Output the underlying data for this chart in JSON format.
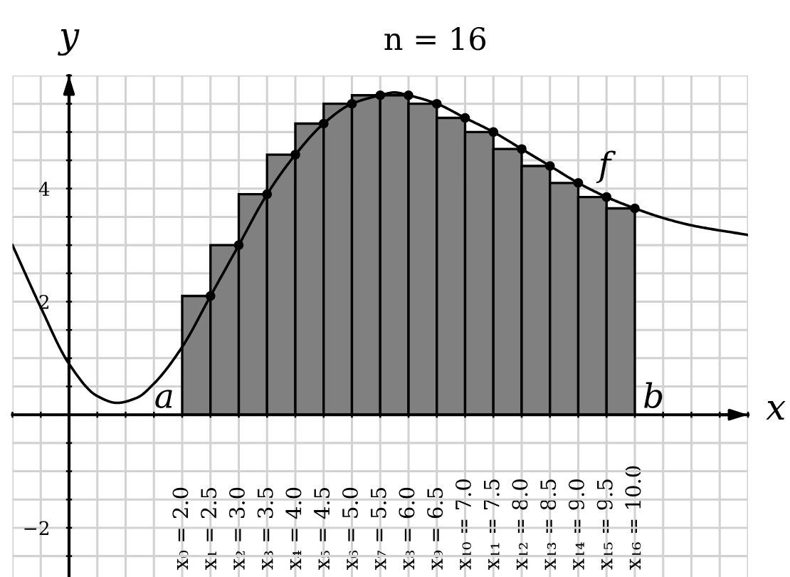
{
  "chart_data": {
    "type": "histogram",
    "title": "n = 16",
    "xlabel": "x",
    "ylabel": "y",
    "bins": [
      2.0,
      2.5,
      3.0,
      3.5,
      4.0,
      4.5,
      5.0,
      5.5,
      6.0,
      6.5,
      7.0,
      7.5,
      8.0,
      8.5,
      9.0,
      9.5,
      10.0
    ],
    "series": [
      {
        "color": "#808080",
        "values": [
          2.1,
          3.0,
          3.9,
          4.6,
          5.15,
          5.5,
          5.65,
          5.65,
          5.5,
          5.25,
          5.0,
          4.7,
          4.4,
          4.1,
          3.85,
          3.65
        ]
      },
      {
        "type": "line",
        "color": "#000000",
        "line_style": "solid",
        "x": [
          -1,
          -0.5,
          0,
          0.5,
          0.85,
          1.2,
          1.5,
          2.0,
          2.5,
          3.0,
          3.5,
          4.0,
          4.5,
          5.0,
          5.5,
          5.75,
          6.0,
          6.5,
          7.0,
          7.5,
          8.0,
          8.5,
          9.0,
          9.5,
          10.0,
          10.5,
          11.0,
          12.0
        ],
        "values": [
          3.0,
          1.9,
          0.9,
          0.33,
          0.21,
          0.3,
          0.55,
          1.2,
          2.1,
          3.0,
          3.9,
          4.6,
          5.15,
          5.5,
          5.65,
          5.7,
          5.65,
          5.5,
          5.25,
          5.0,
          4.7,
          4.4,
          4.1,
          3.85,
          3.65,
          3.48,
          3.35,
          3.18
        ]
      },
      {
        "type": "scatter",
        "color": "#000000",
        "marker": "circle",
        "x": [
          2.5,
          3.0,
          3.5,
          4.0,
          4.5,
          5.0,
          5.5,
          6.0,
          6.5,
          7.0,
          7.5,
          8.0,
          8.5,
          9.0,
          9.5,
          10.0
        ],
        "values": [
          2.1,
          3.0,
          3.9,
          4.6,
          5.15,
          5.5,
          5.65,
          5.65,
          5.5,
          5.25,
          5.0,
          4.7,
          4.4,
          4.1,
          3.85,
          3.65
        ]
      }
    ],
    "xlim": [
      -1,
      12
    ],
    "ylim": [
      -2.87,
      6
    ],
    "xticks": [
      {
        "value": -1,
        "label": null
      },
      {
        "value": -0.5,
        "label": null
      },
      {
        "value": 0,
        "label": null
      },
      {
        "value": 0.5,
        "label": null
      },
      {
        "value": 1,
        "label": null
      },
      {
        "value": 1.5,
        "label": null
      },
      {
        "value": 2.0,
        "label": "x₀ = 2.0"
      },
      {
        "value": 2.5,
        "label": "x₁ = 2.5"
      },
      {
        "value": 3.0,
        "label": "x₂ = 3.0"
      },
      {
        "value": 3.5,
        "label": "x₃ = 3.5"
      },
      {
        "value": 4.0,
        "label": "x₄ = 4.0"
      },
      {
        "value": 4.5,
        "label": "x₅ = 4.5"
      },
      {
        "value": 5.0,
        "label": "x₆ = 5.0"
      },
      {
        "value": 5.5,
        "label": "x₇ = 5.5"
      },
      {
        "value": 6.0,
        "label": "x₈ = 6.0"
      },
      {
        "value": 6.5,
        "label": "x₉ = 6.5"
      },
      {
        "value": 7.0,
        "label": "x₁₀ = 7.0"
      },
      {
        "value": 7.5,
        "label": "x₁₁ = 7.5"
      },
      {
        "value": 8.0,
        "label": "x₁₂ = 8.0"
      },
      {
        "value": 8.5,
        "label": "x₁₃ = 8.5"
      },
      {
        "value": 9.0,
        "label": "x₁₄ = 9.0"
      },
      {
        "value": 9.5,
        "label": "x₁₅ = 9.5"
      },
      {
        "value": 10.0,
        "label": "x₁₆ = 10.0"
      },
      {
        "value": 10.5,
        "label": null
      },
      {
        "value": 11,
        "label": null
      },
      {
        "value": 11.5,
        "label": null
      },
      {
        "value": 12,
        "label": null
      }
    ],
    "yticks": [
      {
        "value": -2.5,
        "label": null
      },
      {
        "value": -2,
        "label": "−2"
      },
      {
        "value": -1.5,
        "label": null
      },
      {
        "value": -1,
        "label": null
      },
      {
        "value": -0.5,
        "label": null
      },
      {
        "value": 0,
        "label": null
      },
      {
        "value": 0.5,
        "label": null
      },
      {
        "value": 1,
        "label": null
      },
      {
        "value": 1.5,
        "label": null
      },
      2,
      {
        "value": 2.5,
        "label": null
      },
      {
        "value": 3,
        "label": null
      },
      {
        "value": 3.5,
        "label": null
      },
      4,
      {
        "value": 4.5,
        "label": null
      },
      {
        "value": 5,
        "label": null
      },
      {
        "value": 5.5,
        "label": null
      },
      {
        "value": 6,
        "label": null
      }
    ],
    "grid": true,
    "annotations": [
      {
        "text": "a",
        "x": 2.0,
        "y": 0
      },
      {
        "text": "b",
        "x": 10.0,
        "y": 0
      },
      {
        "text": "f",
        "x": 9.5,
        "y": 3.85
      }
    ]
  }
}
